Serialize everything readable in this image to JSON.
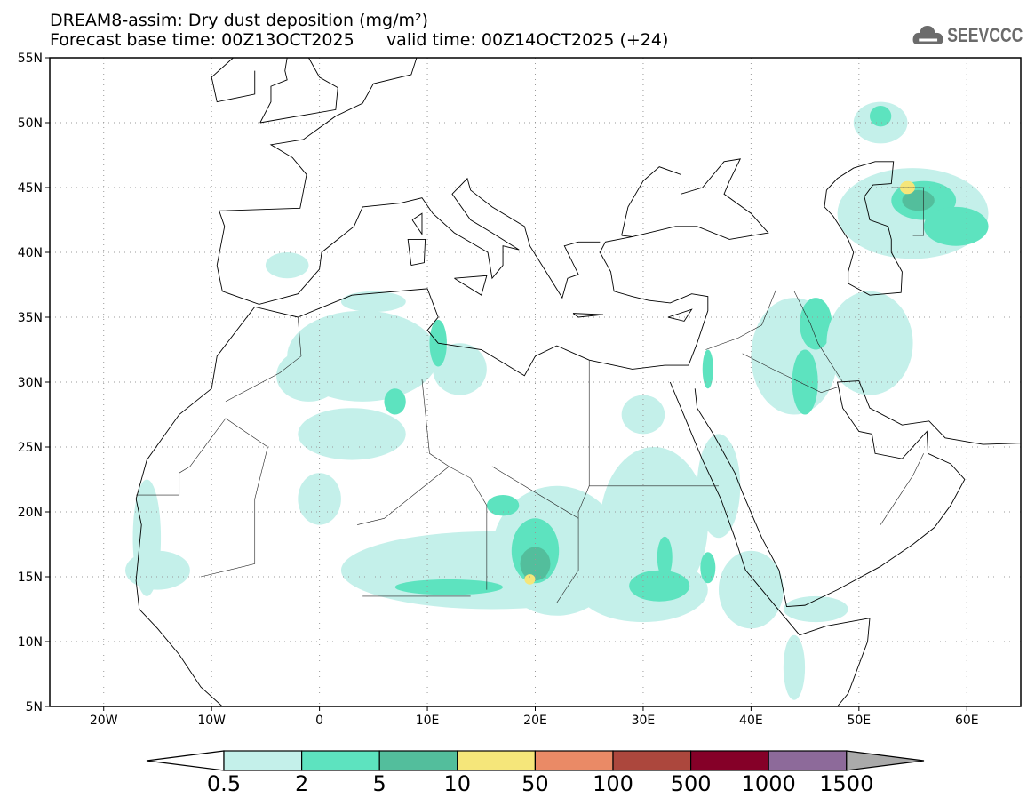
{
  "header": {
    "title": "DREAM8-assim: Dry dust deposition (mg/m²)",
    "base_time": "Forecast base time: 00Z13OCT2025",
    "valid_time": "valid time: 00Z14OCT2025 (+24)"
  },
  "logo": {
    "text": "SEEVCCC",
    "icon": "cloud-icon"
  },
  "map": {
    "lon_range": [
      -25,
      65
    ],
    "lat_range": [
      5,
      55
    ],
    "lat_labels": [
      "5N",
      "10N",
      "15N",
      "20N",
      "25N",
      "30N",
      "35N",
      "40N",
      "45N",
      "50N",
      "55N"
    ],
    "lon_labels": [
      "20W",
      "10W",
      "0",
      "10E",
      "20E",
      "30E",
      "40E",
      "50E",
      "60E"
    ]
  },
  "colorbar": {
    "labels": [
      "0.5",
      "2",
      "5",
      "10",
      "50",
      "100",
      "500",
      "1000",
      "1500"
    ],
    "colors": [
      "#c4f0ea",
      "#5de3bf",
      "#53be9c",
      "#f5e67a",
      "#ea8a66",
      "#ac473d",
      "#850028",
      "#8d6a9a"
    ],
    "over_color": "#aaaaaa",
    "under_color": "#ffffff"
  }
}
